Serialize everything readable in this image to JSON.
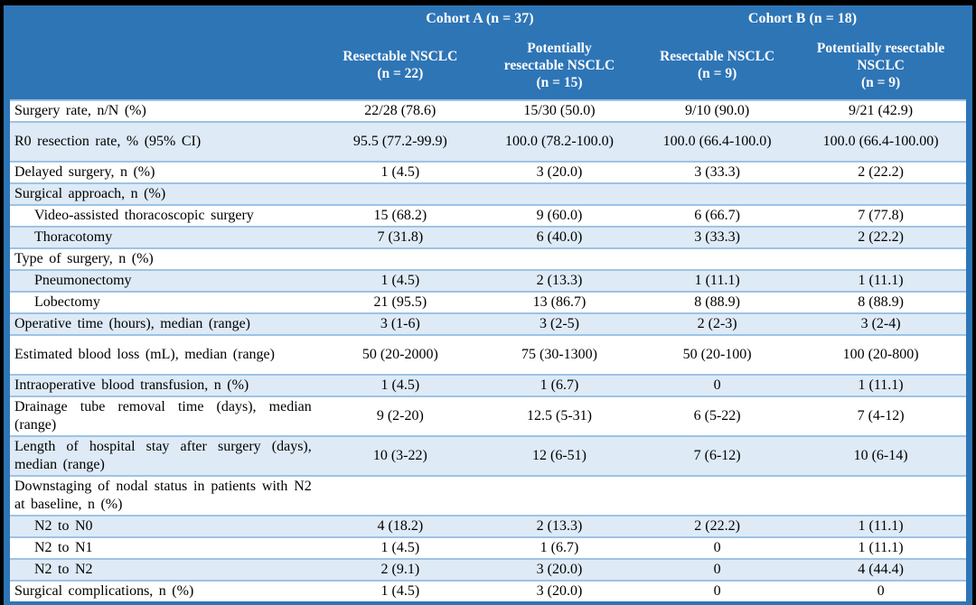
{
  "table": {
    "header": {
      "cohorts": [
        {
          "label": "Cohort A (n = 37)"
        },
        {
          "label": "Cohort B (n = 18)"
        }
      ],
      "columns": [
        {
          "lines": [
            "Resectable NSCLC",
            "(n = 22)"
          ]
        },
        {
          "lines": [
            "Potentially",
            "resectable NSCLC",
            "(n = 15)"
          ]
        },
        {
          "lines": [
            "Resectable NSCLC",
            "(n = 9)"
          ]
        },
        {
          "lines": [
            "Potentially resectable",
            "NSCLC",
            "(n = 9)"
          ]
        }
      ]
    },
    "rows": [
      {
        "label": "Surgery rate, n/N (%)",
        "indent": false,
        "tall": false,
        "values": [
          "22/28 (78.6)",
          "15/30 (50.0)",
          "9/10 (90.0)",
          "9/21 (42.9)"
        ]
      },
      {
        "label": "R0 resection rate, % (95% CI)",
        "indent": false,
        "tall": true,
        "values": [
          "95.5 (77.2-99.9)",
          "100.0 (78.2-100.0)",
          "100.0 (66.4-100.0)",
          "100.0 (66.4-100.00)"
        ]
      },
      {
        "label": "Delayed surgery, n (%)",
        "indent": false,
        "tall": false,
        "values": [
          "1 (4.5)",
          "3 (20.0)",
          "3 (33.3)",
          "2 (22.2)"
        ]
      },
      {
        "label": "Surgical approach, n (%)",
        "indent": false,
        "tall": false,
        "values": [
          "",
          "",
          "",
          ""
        ]
      },
      {
        "label": "Video-assisted thoracoscopic surgery",
        "indent": true,
        "tall": false,
        "values": [
          "15 (68.2)",
          "9 (60.0)",
          "6 (66.7)",
          "7 (77.8)"
        ]
      },
      {
        "label": "Thoracotomy",
        "indent": true,
        "tall": false,
        "values": [
          "7 (31.8)",
          "6 (40.0)",
          "3 (33.3)",
          "2 (22.2)"
        ]
      },
      {
        "label": "Type of surgery, n (%)",
        "indent": false,
        "tall": false,
        "values": [
          "",
          "",
          "",
          ""
        ]
      },
      {
        "label": "Pneumonectomy",
        "indent": true,
        "tall": false,
        "values": [
          "1 (4.5)",
          "2 (13.3)",
          "1 (11.1)",
          "1 (11.1)"
        ]
      },
      {
        "label": "Lobectomy",
        "indent": true,
        "tall": false,
        "values": [
          "21 (95.5)",
          "13 (86.7)",
          "8 (88.9)",
          "8 (88.9)"
        ]
      },
      {
        "label": "Operative time (hours), median (range)",
        "indent": false,
        "tall": false,
        "values": [
          "3 (1-6)",
          "3 (2-5)",
          "2 (2-3)",
          "3 (2-4)"
        ]
      },
      {
        "label": "Estimated blood loss (mL), median (range)",
        "indent": false,
        "tall": true,
        "values": [
          "50 (20-2000)",
          "75 (30-1300)",
          "50 (20-100)",
          "100 (20-800)"
        ]
      },
      {
        "label": "Intraoperative blood transfusion, n (%)",
        "indent": false,
        "tall": false,
        "values": [
          "1 (4.5)",
          "1 (6.7)",
          "0",
          "1 (11.1)"
        ]
      },
      {
        "label": "Drainage tube removal time (days), median (range)",
        "indent": false,
        "tall": false,
        "values": [
          "9 (2-20)",
          "12.5 (5-31)",
          "6 (5-22)",
          "7 (4-12)"
        ]
      },
      {
        "label": "Length of hospital stay after surgery (days), median (range)",
        "indent": false,
        "tall": false,
        "values": [
          "10 (3-22)",
          "12 (6-51)",
          "7 (6-12)",
          "10 (6-14)"
        ]
      },
      {
        "label": "Downstaging of nodal status in patients with N2 at baseline, n (%)",
        "indent": false,
        "tall": false,
        "values": [
          "",
          "",
          "",
          ""
        ]
      },
      {
        "label": "N2 to N0",
        "indent": true,
        "tall": false,
        "values": [
          "4 (18.2)",
          "2 (13.3)",
          "2 (22.2)",
          "1 (11.1)"
        ]
      },
      {
        "label": "N2 to N1",
        "indent": true,
        "tall": false,
        "values": [
          "1 (4.5)",
          "1 (6.7)",
          "0",
          "1 (11.1)"
        ]
      },
      {
        "label": "N2 to N2",
        "indent": true,
        "tall": false,
        "values": [
          "2 (9.1)",
          "3 (20.0)",
          "0",
          "4 (44.4)"
        ]
      },
      {
        "label": "Surgical complications, n (%)",
        "indent": false,
        "tall": false,
        "values": [
          "1 (4.5)",
          "3 (20.0)",
          "0",
          "0"
        ]
      }
    ],
    "colors": {
      "header_bg": "#2E75B6",
      "row_alt_bg": "#DEEAF6",
      "row_bg": "#FFFFFF",
      "row_border": "#9DC3E6",
      "outer_frame": "#000000",
      "header_text": "#FFFFFF",
      "body_text": "#000000"
    }
  }
}
